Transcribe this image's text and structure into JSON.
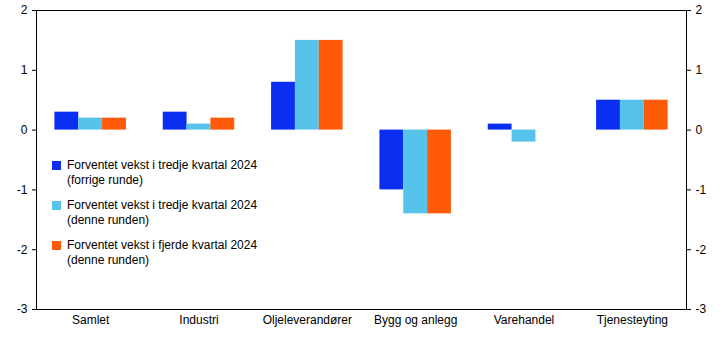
{
  "chart_data": {
    "type": "bar",
    "categories": [
      "Samlet",
      "Industri",
      "Oljeleverandører",
      "Bygg og anlegg",
      "Varehandel",
      "Tjenesteyting"
    ],
    "series": [
      {
        "name": "Forventet vekst i tredje kvartal 2024\n(forrige runde)",
        "color": "#0a2ff0",
        "values": [
          0.3,
          0.3,
          0.8,
          -1.0,
          0.1,
          0.5
        ]
      },
      {
        "name": "Forventet vekst i tredje kvartal 2024\n(denne runden)",
        "color": "#55c3ea",
        "values": [
          0.2,
          0.1,
          1.5,
          -1.4,
          -0.2,
          0.5
        ]
      },
      {
        "name": "Forventet vekst i fjerde kvartal 2024\n(denne runden)",
        "color": "#ff5a0a",
        "values": [
          0.2,
          0.2,
          1.5,
          -1.4,
          0,
          0.5
        ]
      }
    ],
    "ylim": [
      -3,
      2
    ],
    "yticks": [
      -3,
      -2,
      -1,
      0,
      1,
      2
    ],
    "grid": false,
    "legend": "left"
  }
}
